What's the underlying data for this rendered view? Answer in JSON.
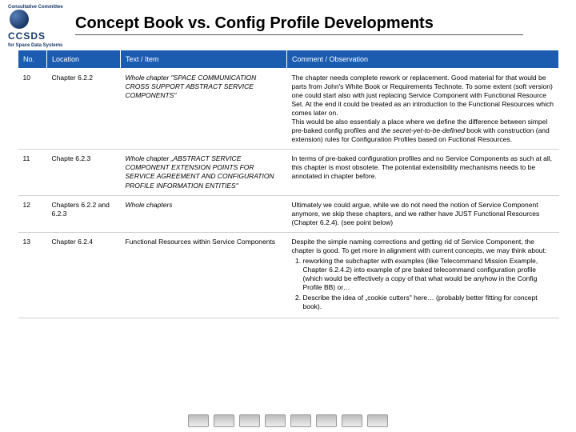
{
  "title": "Concept Book vs. Config Profile Developments",
  "logo": {
    "line1": "Consultative Committee",
    "line2": "for Space Data Systems",
    "letters": "CCSDS"
  },
  "headers": {
    "no": "No.",
    "location": "Location",
    "text": "Text / Item",
    "comment": "Comment / Observation"
  },
  "rows": [
    {
      "no": "10",
      "location": "Chapter 6.2.2",
      "text": "Whole chapter \"SPACE COMMUNICATION CROSS SUPPORT ABSTRACT SERVICE COMPONENTS\"",
      "comment_a": "The chapter needs complete rework or replacement. Good material for that would be parts from John's White Book or Requirements Technote. To some extent (soft version) one could start also with just replacing Service Component with Functional Resource Set. At the end it could be treated as an introduction to the Functional Resources which comes later on.",
      "comment_b": "This would be also essentialy a place where we define the difference between simpel pre-baked config profiles and ",
      "comment_em": "the secret-yet-to-be-defined",
      "comment_c": " book with construction (and extension) rules for Configuration Profiles based on Fuctional Resources."
    },
    {
      "no": "11",
      "location": "Chapte 6.2.3",
      "text": "Whole chapter „ABSTRACT SERVICE COMPONENT EXTENSION POINTS FOR SERVICE AGREEMENT AND CONFIGURATION PROFILE INFORMATION ENTITIES\"",
      "comment": "In terms of pre-baked configuration profiles and no Service Components as such at all, this chapter is most obsolete. The potential extensibility mechanisms needs to be annotated in chapter before."
    },
    {
      "no": "12",
      "location": "Chapters 6.2.2 and 6.2.3",
      "text": "Whole chapters",
      "comment": "Ultimately we could argue, while we do not need the notion of Service Component anymore, we skip these chapters, and we rather have JUST Functional Resources (Chapter 6.2.4). (see point below)"
    },
    {
      "no": "13",
      "location": "Chapter 6.2.4",
      "text": "Functional Resources within Service Components",
      "comment_intro": "Despite the simple naming corrections and getting rid of Service Component, the chapter is good. To get more in alignment with current concepts, we may think about:",
      "li1": "reworking the subchapter with examples (like Telecommand Mission Example, Chapter 6.2.4.2) into example of pre baked telecommand configuration profile (which would be effectively a copy of that what would be anyhow in the Config Profile BB) or…",
      "li2": "Describe the idea of „cookie cutters\" here… (probably better fitting for concept book)."
    }
  ],
  "footer_count": 8,
  "colors": {
    "header_bg": "#1b5bb0",
    "header_fg": "#ffffff",
    "border": "#d0d0d0"
  }
}
